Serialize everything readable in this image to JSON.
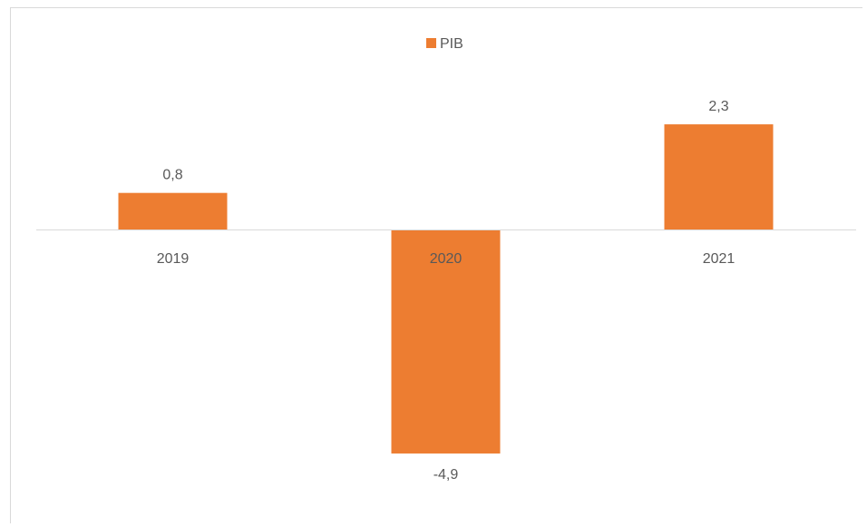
{
  "chart_data": {
    "type": "bar",
    "categories": [
      "2019",
      "2020",
      "2021"
    ],
    "series": [
      {
        "name": "PIB",
        "values": [
          0.8,
          -4.9,
          2.3
        ],
        "data_labels": [
          "0,8",
          "-4,9",
          "2,3"
        ],
        "color": "#ED7D31"
      }
    ],
    "legend": {
      "position": "top",
      "label": "PIB"
    },
    "axis_line_color": "#D9D9D9",
    "text_color": "#595959",
    "gridlines": false,
    "y_axis_visible": false
  }
}
